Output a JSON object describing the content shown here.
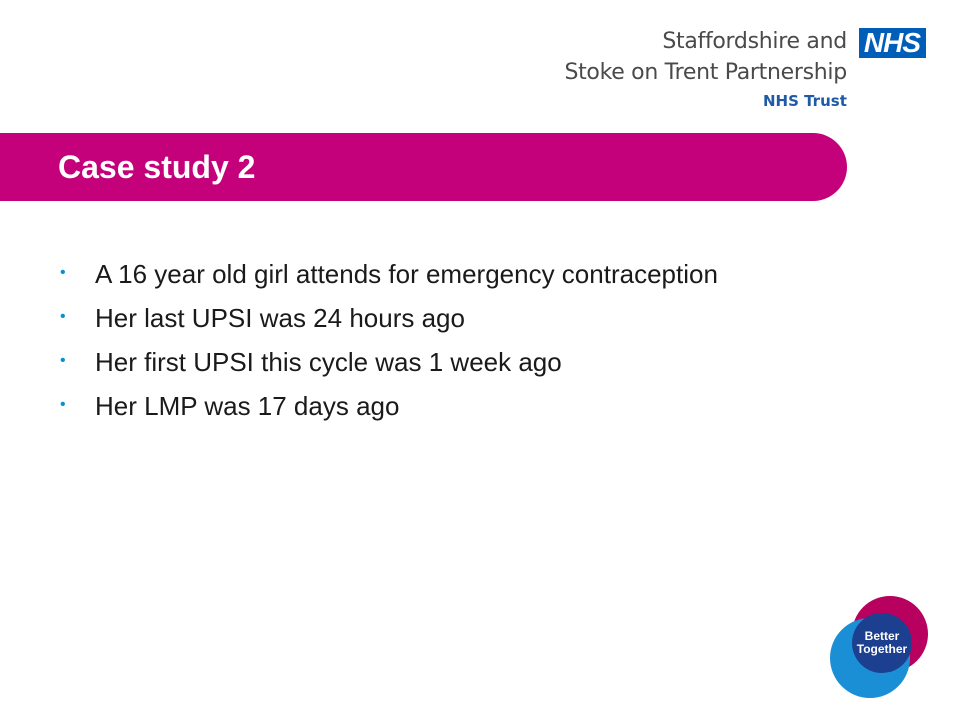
{
  "header": {
    "org_line1": "Staffordshire and",
    "org_line2": "Stoke on Trent Partnership",
    "org_trust": "NHS Trust",
    "nhs_logo": "NHS"
  },
  "slide": {
    "title": "Case study 2",
    "bullets": [
      "A 16 year old girl attends for emergency contraception",
      "Her last UPSI was 24 hours ago",
      "Her first UPSI this cycle was 1 week ago",
      "Her LMP was 17 days ago"
    ]
  },
  "footer_logo": {
    "line1": "Better",
    "line2": "Together"
  },
  "colors": {
    "title_bar": "#c4007a",
    "bullet": "#0093d0",
    "nhs_blue": "#005eb8",
    "logo_magenta": "#b8005f",
    "logo_blue": "#1b8fd6",
    "logo_navy": "#1d3f8f"
  }
}
